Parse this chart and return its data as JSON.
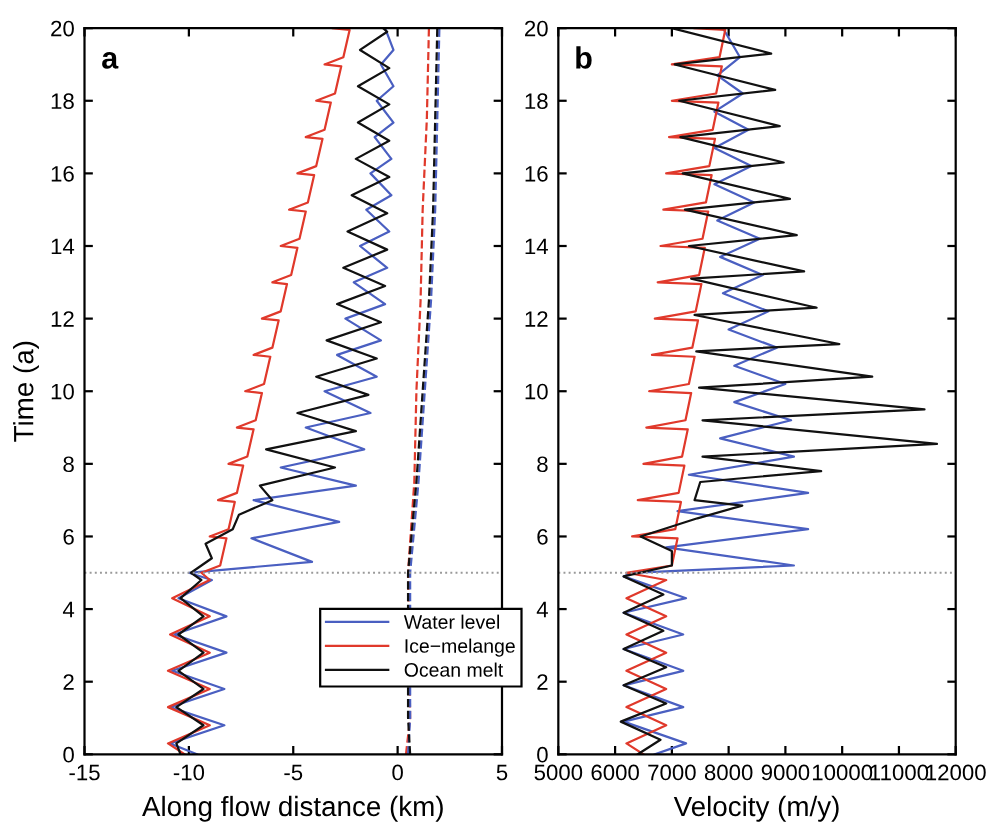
{
  "chart_data": [
    {
      "type": "line",
      "orientation": "horizontal",
      "xlabel": "Along flow distance (km)",
      "ylabel": "Time (a)",
      "annotations": [
        "a"
      ],
      "xlim": [
        -15,
        5
      ],
      "xticks": [
        -15,
        -10,
        -5,
        0,
        5
      ],
      "ylim": [
        0,
        20
      ],
      "yticks": [
        0,
        2,
        4,
        6,
        8,
        10,
        12,
        14,
        16,
        18,
        20
      ],
      "grid": false,
      "legend": "bottom right",
      "ref_lines": [
        {
          "axis": "y",
          "value": 5,
          "label": null,
          "color": "#999999",
          "line_style": "dotted"
        }
      ],
      "series": [
        {
          "name": "Water level",
          "color": "#4a5fc1",
          "line_style": "solid",
          "x": [
            0,
            0.3,
            0.8,
            1.3,
            1.8,
            2.3,
            2.8,
            3.3,
            3.8,
            4.3,
            4.8,
            5.0,
            5.3,
            5.95,
            6.4,
            7.0,
            7.4,
            7.9,
            8.4,
            9.0,
            9.4,
            10.0,
            10.4,
            11.0,
            11.4,
            12.0,
            12.4,
            13.0,
            13.4,
            14.0,
            14.4,
            15.0,
            15.4,
            16.0,
            16.4,
            17.0,
            17.4,
            18.0,
            18.4,
            19.0,
            19.4,
            20
          ],
          "values": [
            -9.6,
            -10.9,
            -8.3,
            -10.9,
            -8.3,
            -10.8,
            -8.2,
            -10.7,
            -8.2,
            -10.5,
            -8.9,
            -10.0,
            -4.1,
            -7.0,
            -2.8,
            -6.9,
            -2.0,
            -5.6,
            -1.6,
            -4.4,
            -1.3,
            -3.5,
            -1.0,
            -2.9,
            -0.8,
            -2.5,
            -0.6,
            -2.1,
            -0.5,
            -1.8,
            -0.4,
            -1.5,
            -0.3,
            -1.3,
            -0.3,
            -1.1,
            -0.2,
            -1.0,
            -0.2,
            -0.8,
            -0.2,
            -0.6
          ]
        },
        {
          "name": "Ice−melange",
          "color": "#e0392b",
          "line_style": "solid",
          "x": [
            0,
            0.3,
            0.8,
            1.3,
            1.8,
            2.3,
            2.8,
            3.3,
            3.8,
            4.3,
            4.8,
            5,
            5.2,
            5.95,
            6,
            6.2,
            6.95,
            7,
            7.2,
            7.95,
            8,
            8.2,
            8.95,
            9,
            9.2,
            9.95,
            10,
            10.2,
            10.95,
            11,
            11.2,
            11.95,
            12,
            12.2,
            12.95,
            13,
            13.2,
            13.95,
            14,
            14.2,
            14.95,
            15,
            15.2,
            15.95,
            16,
            16.2,
            16.95,
            17,
            17.2,
            17.95,
            18,
            18.2,
            18.95,
            19,
            19.2,
            19.95,
            20
          ],
          "values": [
            -10.2,
            -11.0,
            -9.0,
            -11.0,
            -9.0,
            -11.0,
            -9.0,
            -10.9,
            -9.0,
            -10.8,
            -9.0,
            -9.4,
            -8.5,
            -8.2,
            -9.0,
            -8.1,
            -7.8,
            -8.6,
            -7.7,
            -7.4,
            -8.1,
            -7.2,
            -6.9,
            -7.7,
            -6.8,
            -6.5,
            -7.3,
            -6.4,
            -6.1,
            -6.9,
            -6.0,
            -5.7,
            -6.5,
            -5.6,
            -5.3,
            -6.0,
            -5.1,
            -4.8,
            -5.6,
            -4.7,
            -4.4,
            -5.2,
            -4.3,
            -4.0,
            -4.8,
            -3.9,
            -3.6,
            -4.4,
            -3.5,
            -3.2,
            -3.9,
            -3.0,
            -2.7,
            -3.5,
            -2.6,
            -2.3,
            -3.1
          ]
        },
        {
          "name": "Ocean melt",
          "color": "#111111",
          "line_style": "solid",
          "x": [
            0,
            0.3,
            0.8,
            1.3,
            1.8,
            2.3,
            2.8,
            3.3,
            3.8,
            4.3,
            4.8,
            5.0,
            5.4,
            5.8,
            6.2,
            6.6,
            7.0,
            7.4,
            7.9,
            8.4,
            8.9,
            9.4,
            9.9,
            10.4,
            10.9,
            11.4,
            11.9,
            12.4,
            12.9,
            13.4,
            13.9,
            14.4,
            14.9,
            15.4,
            15.9,
            16.4,
            16.9,
            17.4,
            17.9,
            18.4,
            18.9,
            19.4,
            19.9,
            20
          ],
          "values": [
            -10.4,
            -10.6,
            -9.3,
            -10.6,
            -9.3,
            -10.5,
            -9.3,
            -10.5,
            -9.3,
            -10.4,
            -9.4,
            -9.9,
            -8.9,
            -9.2,
            -7.9,
            -7.6,
            -6.0,
            -6.6,
            -3.0,
            -6.3,
            -2.0,
            -4.8,
            -1.4,
            -3.9,
            -1.0,
            -3.4,
            -0.8,
            -2.9,
            -0.6,
            -2.6,
            -0.5,
            -2.4,
            -0.5,
            -2.2,
            -0.4,
            -2.0,
            -0.4,
            -1.9,
            -0.4,
            -1.9,
            -0.4,
            -1.8,
            -0.5,
            -0.7
          ]
        },
        {
          "color": "#e0392b",
          "line_style": "dashed",
          "x": [
            0,
            1,
            5,
            7.5,
            10,
            12.5,
            15,
            17.5,
            20
          ],
          "values": [
            0.4,
            0.6,
            0.5,
            0.8,
            0.9,
            1.1,
            1.2,
            1.4,
            1.5
          ]
        },
        {
          "color": "#4a5fc1",
          "line_style": "dashed",
          "x": [
            0,
            1,
            5,
            7.5,
            10,
            12.5,
            15,
            17.5,
            20
          ],
          "values": [
            0.5,
            0.6,
            0.6,
            1.0,
            1.3,
            1.6,
            1.8,
            1.9,
            2.0
          ]
        },
        {
          "color": "#111111",
          "line_style": "dashed",
          "x": [
            0,
            1,
            5,
            7.5,
            10,
            12.5,
            15,
            17.5,
            20
          ],
          "values": [
            0.6,
            0.5,
            0.5,
            0.9,
            1.2,
            1.5,
            1.7,
            1.8,
            1.9
          ]
        }
      ]
    },
    {
      "type": "line",
      "orientation": "horizontal",
      "xlabel": "Velocity (m/y)",
      "annotations": [
        "b"
      ],
      "xlim": [
        5000,
        12000
      ],
      "xticks": [
        5000,
        6000,
        7000,
        8000,
        9000,
        10000,
        11000,
        12000
      ],
      "ylim": [
        0,
        20
      ],
      "yticks": [
        0,
        2,
        4,
        6,
        8,
        10,
        12,
        14,
        16,
        18,
        20
      ],
      "grid": false,
      "ref_lines": [
        {
          "axis": "y",
          "value": 5,
          "label": null,
          "color": "#999999",
          "line_style": "dotted"
        }
      ],
      "series": [
        {
          "color": "#4a5fc1",
          "line_style": "solid",
          "x": [
            0,
            0.3,
            0.9,
            1.3,
            1.9,
            2.3,
            2.9,
            3.3,
            3.9,
            4.3,
            4.9,
            5.0,
            5.2,
            5.7,
            6.2,
            6.7,
            7.2,
            7.7,
            8.2,
            8.7,
            9.2,
            9.7,
            10.2,
            10.7,
            11.2,
            11.7,
            12.2,
            12.7,
            13.2,
            13.7,
            14.2,
            14.7,
            15.2,
            15.7,
            16.2,
            16.7,
            17.2,
            17.7,
            18.2,
            18.7,
            19.2,
            20
          ],
          "values": [
            6700,
            7250,
            6150,
            7200,
            6150,
            7200,
            6150,
            7200,
            6150,
            7250,
            6150,
            6300,
            9150,
            6900,
            9400,
            7100,
            9400,
            7300,
            9150,
            7850,
            9100,
            8100,
            9000,
            8100,
            8850,
            8000,
            8700,
            7900,
            8600,
            7850,
            8550,
            7800,
            8450,
            7750,
            8400,
            7750,
            8350,
            7750,
            8250,
            7800,
            8200,
            7900
          ]
        },
        {
          "color": "#e0392b",
          "line_style": "solid",
          "x": [
            0,
            0.3,
            0.8,
            1.3,
            1.8,
            2.3,
            2.8,
            3.3,
            3.8,
            4.3,
            4.8,
            5,
            5.2,
            5.95,
            6,
            6.2,
            6.95,
            7,
            7.2,
            7.95,
            8,
            8.2,
            8.95,
            9,
            9.2,
            9.95,
            10,
            10.2,
            10.95,
            11,
            11.2,
            11.95,
            12,
            12.2,
            12.95,
            13,
            13.2,
            13.95,
            14,
            14.2,
            14.95,
            15,
            15.2,
            15.95,
            16,
            16.2,
            16.95,
            17,
            17.2,
            17.95,
            18,
            18.2,
            18.95,
            19,
            19.2,
            19.95,
            20
          ],
          "values": [
            6500,
            6200,
            6900,
            6200,
            6900,
            6200,
            6900,
            6200,
            6900,
            6200,
            6900,
            6200,
            7000,
            7100,
            6300,
            7060,
            7160,
            6400,
            7120,
            7220,
            6500,
            7180,
            7280,
            6550,
            7240,
            7340,
            6600,
            7300,
            7400,
            6650,
            7360,
            7460,
            6700,
            7420,
            7520,
            6750,
            7480,
            7580,
            6800,
            7540,
            7640,
            6850,
            7600,
            7700,
            6900,
            7660,
            7760,
            6950,
            7720,
            7820,
            7000,
            7780,
            7880,
            7000,
            7840,
            7940,
            7400
          ]
        },
        {
          "color": "#111111",
          "line_style": "solid",
          "x": [
            0,
            0.4,
            0.9,
            1.4,
            1.9,
            2.4,
            2.9,
            3.4,
            3.9,
            4.4,
            4.9,
            5.2,
            5.6,
            6.0,
            6.5,
            6.85,
            7.0,
            7.5,
            7.8,
            8.2,
            8.55,
            9.2,
            9.5,
            10.1,
            10.4,
            11.1,
            11.3,
            12.1,
            12.3,
            13.1,
            13.3,
            14.0,
            14.3,
            15.0,
            15.3,
            16.0,
            16.3,
            17.0,
            17.3,
            18.0,
            18.3,
            19.0,
            19.3,
            20
          ],
          "values": [
            6400,
            6800,
            6100,
            6900,
            6150,
            6900,
            6150,
            6850,
            6150,
            6850,
            6150,
            7000,
            7000,
            6450,
            7450,
            8240,
            7400,
            7500,
            9630,
            7540,
            11670,
            7540,
            11450,
            7480,
            10530,
            7430,
            9950,
            7400,
            9550,
            7340,
            9330,
            7300,
            9200,
            7230,
            9080,
            7190,
            8970,
            7150,
            8900,
            7130,
            8820,
            7050,
            8750,
            7000
          ]
        }
      ]
    }
  ]
}
